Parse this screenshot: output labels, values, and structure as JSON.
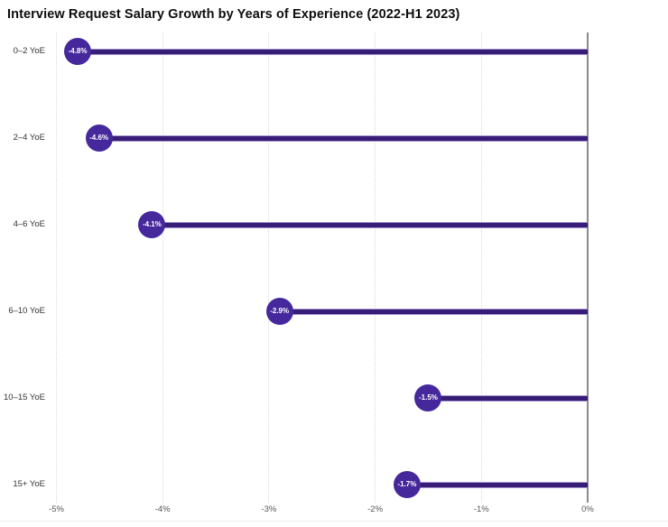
{
  "title": "Interview Request Salary Growth by Years of Experience (2022-H1 2023)",
  "chart_data": {
    "type": "bar",
    "subtype": "horizontal-lollipop",
    "categories": [
      "0–2 YoE",
      "2–4 YoE",
      "4–6 YoE",
      "6–10 YoE",
      "10–15 YoE",
      "15+ YoE"
    ],
    "values": [
      -4.8,
      -4.6,
      -4.1,
      -2.9,
      -1.5,
      -1.7
    ],
    "value_labels": [
      "-4.8%",
      "-4.6%",
      "-4.1%",
      "-2.9%",
      "-1.5%",
      "-1.7%"
    ],
    "title": "Interview Request Salary Growth by Years of Experience (2022-H1 2023)",
    "xlabel": "",
    "ylabel": "",
    "xlim": [
      -5,
      0
    ],
    "x_ticks": [
      -5,
      -4,
      -3,
      -2,
      -1,
      0
    ],
    "x_tick_labels": [
      "-5%",
      "-4%",
      "-3%",
      "-2%",
      "-1%",
      "0%"
    ],
    "grid": "vertical-dotted",
    "baseline": "0% axis drawn as solid gray vertical line at right",
    "legend": "none",
    "colors": {
      "marker": "#46289d",
      "bar_core": "#371d75",
      "bar_edge": "#a795d2",
      "axis_line": "#8a8a8a",
      "gridline": "#d9d9d9",
      "title_text": "#0d0d0d",
      "category_text": "#333333",
      "tick_text": "#555555",
      "marker_text": "#ffffff"
    }
  }
}
